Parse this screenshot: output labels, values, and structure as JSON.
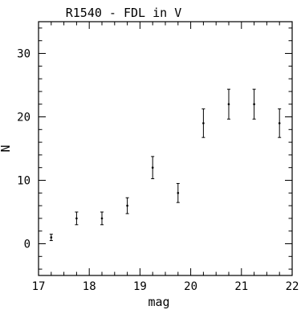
{
  "chart_data": {
    "type": "scatter",
    "title": "R1540 - FDL in V",
    "xlabel": "mag",
    "ylabel": "N",
    "xlim": [
      17,
      22
    ],
    "ylim": [
      -5,
      35
    ],
    "x_ticks": [
      17,
      18,
      19,
      20,
      21,
      22
    ],
    "y_ticks": [
      0,
      10,
      20,
      30
    ],
    "x_minor_step": 0.25,
    "y_minor_step": 2,
    "grid": false,
    "error_bars": true,
    "points": [
      {
        "x": 17.25,
        "y": 1,
        "err": 0.5
      },
      {
        "x": 17.75,
        "y": 4,
        "err": 1.0
      },
      {
        "x": 18.25,
        "y": 4,
        "err": 1.0
      },
      {
        "x": 18.75,
        "y": 6,
        "err": 1.25
      },
      {
        "x": 19.25,
        "y": 12,
        "err": 1.75
      },
      {
        "x": 19.75,
        "y": 8,
        "err": 1.5
      },
      {
        "x": 20.25,
        "y": 19,
        "err": 2.25
      },
      {
        "x": 20.75,
        "y": 22,
        "err": 2.35
      },
      {
        "x": 21.25,
        "y": 22,
        "err": 2.35
      },
      {
        "x": 21.75,
        "y": 19,
        "err": 2.25
      }
    ]
  }
}
